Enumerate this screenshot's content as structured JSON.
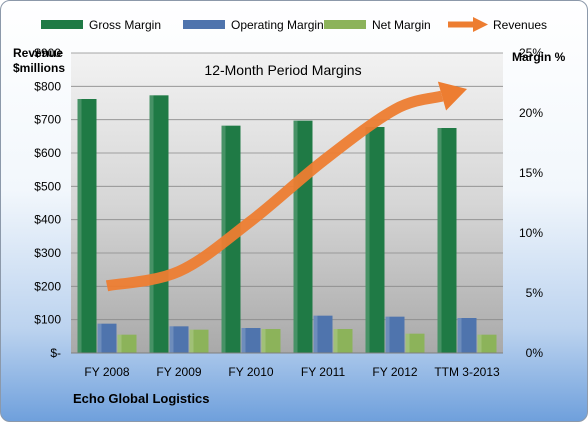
{
  "chart_data": {
    "type": "bar",
    "title": "12-Month Period Margins",
    "company": "Echo Global Logistics",
    "categories": [
      "FY 2008",
      "FY 2009",
      "FY 2010",
      "FY 2011",
      "FY 2012",
      "TTM 3-2013"
    ],
    "series": [
      {
        "name": "Gross Margin",
        "kind": "bar",
        "axis": "left",
        "color": "#1f7a45",
        "values": [
          762,
          773,
          682,
          697,
          678,
          675
        ]
      },
      {
        "name": "Operating Margin",
        "kind": "bar",
        "axis": "left",
        "color": "#4f74ad",
        "values": [
          88,
          80,
          75,
          112,
          109,
          105
        ]
      },
      {
        "name": "Net Margin",
        "kind": "bar",
        "axis": "left",
        "color": "#8cb35a",
        "values": [
          55,
          70,
          72,
          72,
          58,
          55
        ]
      },
      {
        "name": "Revenues",
        "kind": "line-arrow",
        "axis": "right",
        "color": "#ed7d31",
        "values": [
          5.6,
          6.8,
          11.0,
          16.0,
          20.3,
          22.0
        ]
      }
    ],
    "y_left": {
      "label_line1": "Revenue",
      "label_line2": "$millions",
      "min": 0,
      "max": 900,
      "ticks": [
        0,
        100,
        200,
        300,
        400,
        500,
        600,
        700,
        800,
        900
      ],
      "tick_labels": [
        "$-",
        "$100",
        "$200",
        "$300",
        "$400",
        "$500",
        "$600",
        "$700",
        "$800",
        "$900"
      ]
    },
    "y_right": {
      "label": "Margin %",
      "min": 0,
      "max": 25,
      "ticks": [
        0,
        5,
        10,
        15,
        20,
        25
      ],
      "tick_labels": [
        "0%",
        "5%",
        "10%",
        "15%",
        "20%",
        "25%"
      ]
    },
    "legend_position": "top",
    "grid": true
  }
}
